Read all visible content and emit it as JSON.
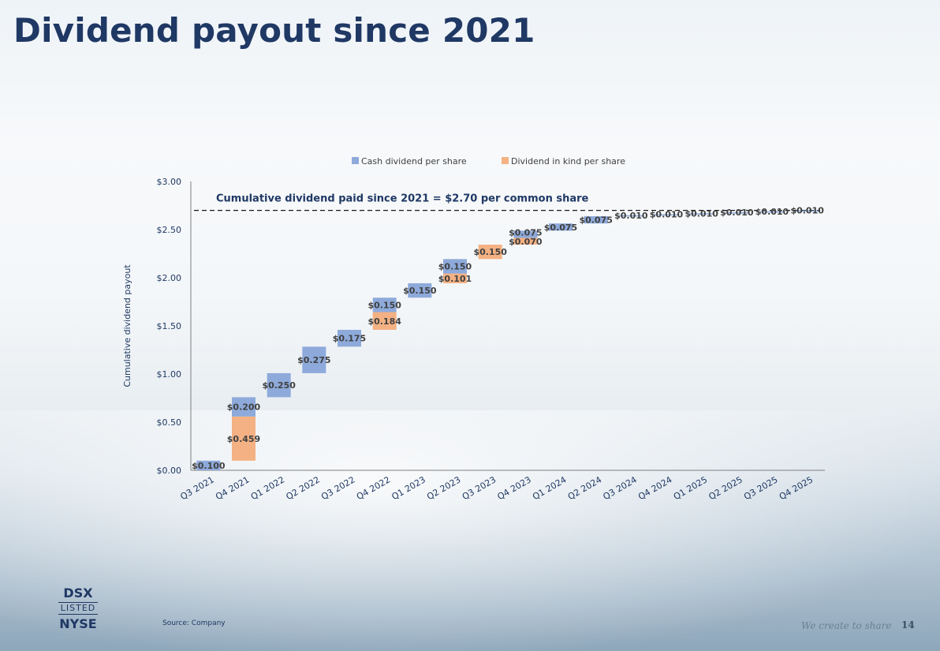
{
  "title": "Dividend payout since 2021",
  "source": "Source: Company",
  "tagline": "We create to share",
  "page_number": "14",
  "logo": {
    "top": "DSX",
    "middle": "LISTED",
    "bottom": "NYSE"
  },
  "colors": {
    "cash": "#8eaadb",
    "kind": "#f4b183",
    "title": "#1f3864",
    "label": "#1f3864"
  },
  "chart_data": {
    "type": "bar",
    "subtype": "waterfall-stacked",
    "ylabel": "Cumulative dividend payout",
    "ylim": [
      0,
      3
    ],
    "yticks": [
      "$0.00",
      "$0.50",
      "$1.00",
      "$1.50",
      "$2.00",
      "$2.50",
      "$3.00"
    ],
    "ytick_values": [
      0,
      0.5,
      1,
      1.5,
      2,
      2.5,
      3
    ],
    "legend_position": "top",
    "categories": [
      "Q3 2021",
      "Q4 2021",
      "Q1 2022",
      "Q2 2022",
      "Q3 2022",
      "Q4 2022",
      "Q1 2023",
      "Q2 2023",
      "Q3 2023",
      "Q4 2023",
      "Q1 2024",
      "Q2 2024",
      "Q3 2024",
      "Q4 2024",
      "Q1 2025",
      "Q2 2025",
      "Q3 2025",
      "Q4 2025"
    ],
    "series": [
      {
        "name": "Cash dividend per share",
        "values": [
          0.1,
          0.2,
          0.25,
          0.275,
          0.175,
          0.15,
          0.15,
          0.15,
          0,
          0.075,
          0.075,
          0.075,
          0.01,
          0.01,
          0.01,
          0.01,
          0.01,
          0.01
        ],
        "labels": [
          "$0.100",
          "$0.200",
          "$0.250",
          "$0.275",
          "$0.175",
          "$0.150",
          "$0.150",
          "$0.150",
          "",
          "$0.075",
          "$0.075",
          "$0.075",
          "$0.010",
          "$0.010",
          "$0.010",
          "$0.010",
          "$0.010",
          "$0.010"
        ]
      },
      {
        "name": "Dividend in kind per share",
        "values": [
          0,
          0.459,
          0,
          0,
          0,
          0.184,
          0,
          0.101,
          0.15,
          0.07,
          0,
          0,
          0,
          0,
          0,
          0,
          0,
          0
        ],
        "labels": [
          "",
          "$0.459",
          "",
          "",
          "",
          "$0.184",
          "",
          "$0.101",
          "$0.150",
          "$0.070",
          "",
          "",
          "",
          "",
          "",
          "",
          "",
          ""
        ]
      }
    ],
    "reference_line": {
      "value": 2.7,
      "label": "Cumulative dividend paid since 2021 = $2.70 per common share"
    },
    "grid": false
  }
}
